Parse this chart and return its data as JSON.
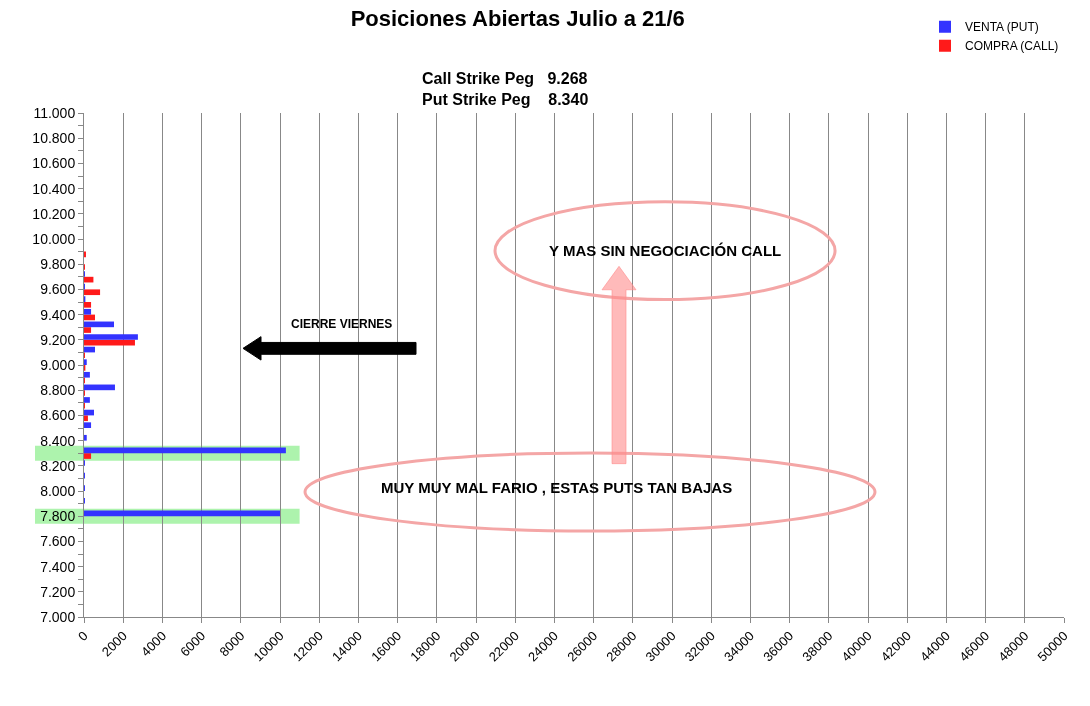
{
  "chart_data": {
    "type": "bar",
    "orientation": "horizontal",
    "title": "Posiciones Abiertas Julio a 21/6",
    "subtitle": "Call Strike Peg   9.268\nPut Strike Peg    8.340",
    "x": [
      7800,
      7900,
      8000,
      8100,
      8200,
      8300,
      8400,
      8500,
      8600,
      8700,
      8800,
      8900,
      9000,
      9100,
      9200,
      9300,
      9400,
      9500,
      9600,
      9700,
      9800,
      9900
    ],
    "series": [
      {
        "name": "VENTA (PUT)",
        "color": "#3333ff",
        "values": [
          10000,
          50,
          50,
          50,
          50,
          10300,
          140,
          360,
          510,
          300,
          1580,
          300,
          140,
          560,
          2750,
          1530,
          360,
          70,
          50,
          50,
          0,
          0
        ]
      },
      {
        "name": "COMPRA (CALL)",
        "color": "#ff1a1a",
        "values": [
          0,
          0,
          0,
          0,
          0,
          360,
          0,
          0,
          200,
          50,
          50,
          50,
          70,
          50,
          2600,
          360,
          560,
          360,
          820,
          480,
          50,
          100
        ]
      }
    ],
    "xlim": [
      0,
      50000
    ],
    "xticks": [
      0,
      2000,
      4000,
      6000,
      8000,
      10000,
      12000,
      14000,
      16000,
      18000,
      20000,
      22000,
      24000,
      26000,
      28000,
      30000,
      32000,
      34000,
      36000,
      38000,
      40000,
      42000,
      44000,
      46000,
      48000,
      50000
    ],
    "ylim": [
      7000,
      11000
    ],
    "yticks": [
      {
        "value": 7000,
        "label": "7.000"
      },
      {
        "value": 7200,
        "label": "7.200"
      },
      {
        "value": 7400,
        "label": "7.400"
      },
      {
        "value": 7600,
        "label": "7.600"
      },
      {
        "value": 7800,
        "label": "7.800"
      },
      {
        "value": 8000,
        "label": "8.000"
      },
      {
        "value": 8200,
        "label": "8.200"
      },
      {
        "value": 8400,
        "label": "8.400"
      },
      {
        "value": 8600,
        "label": "8.600"
      },
      {
        "value": 8800,
        "label": "8.800"
      },
      {
        "value": 9000,
        "label": "9.000"
      },
      {
        "value": 9200,
        "label": "9.200"
      },
      {
        "value": 9400,
        "label": "9.400"
      },
      {
        "value": 9600,
        "label": "9.600"
      },
      {
        "value": 9800,
        "label": "9.800"
      },
      {
        "value": 10000,
        "label": "10.000"
      },
      {
        "value": 10200,
        "label": "10.200"
      },
      {
        "value": 10400,
        "label": "10.400"
      },
      {
        "value": 10600,
        "label": "10.600"
      },
      {
        "value": 10800,
        "label": "10.800"
      },
      {
        "value": 11000,
        "label": "11.000"
      }
    ],
    "bands": [
      {
        "axis": "y",
        "from": 8240,
        "to": 8360,
        "color": "#99f099"
      },
      {
        "axis": "y",
        "from": 7740,
        "to": 7860,
        "color": "#99f099"
      }
    ],
    "annotations": [
      "CIERRE VIERNES",
      "Y MAS SIN NEGOCIACIÓN CALL",
      "MUY MUY MAL FARIO , ESTAS PUTS TAN BAJAS"
    ],
    "grid": "x",
    "legend": "top right"
  }
}
